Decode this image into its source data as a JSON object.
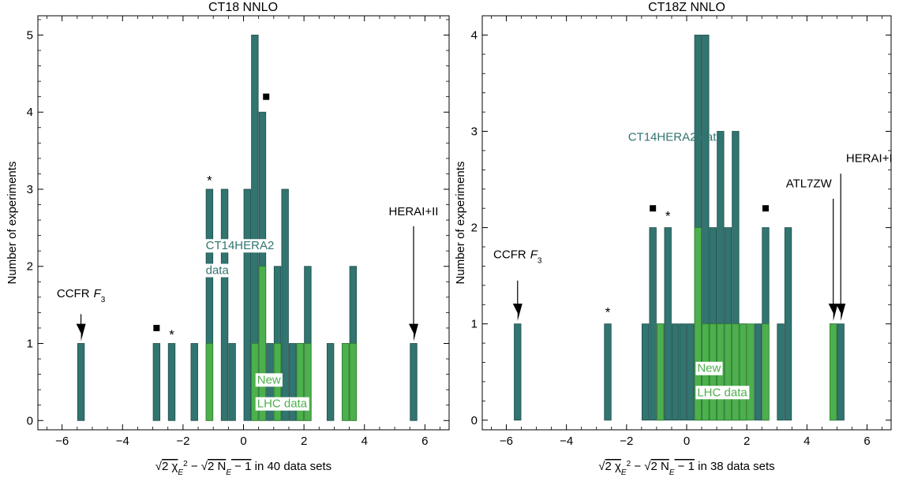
{
  "chart_data": [
    {
      "type": "bar",
      "title": "CT18 NNLO",
      "ylabel": "Number of experiments",
      "xlabel_sqrt1": "2 χ",
      "xlabel_sub1": "E",
      "xlabel_sup1": "2",
      "xlabel_minus": " − ",
      "xlabel_sqrt2": "2 N",
      "xlabel_sub2": "E",
      "xlabel_tail2": " − 1",
      "xlabel_suffix": " in 40 data sets",
      "xlim": [
        -6.8,
        6.8
      ],
      "ylim": [
        -0.12,
        5.25
      ],
      "xticks": [
        -6,
        -4,
        -2,
        0,
        2,
        4,
        6
      ],
      "xtick_labels": [
        "−6",
        "−4",
        "−2",
        "0",
        "2",
        "4",
        "6"
      ],
      "yticks": [
        0,
        1,
        2,
        3,
        4,
        5
      ],
      "bin_width": 0.25,
      "colors": {
        "ct14hera2": "#317470",
        "lhc": "#4cb04c",
        "edge": "#1f4f4c",
        "text_dark": "#000000"
      },
      "series": [
        {
          "name": "CT14HERA2 data",
          "bins": [
            {
              "x": -5.375,
              "y": 1
            },
            {
              "x": -2.875,
              "y": 1
            },
            {
              "x": -2.375,
              "y": 1
            },
            {
              "x": -1.625,
              "y": 1
            },
            {
              "x": -1.125,
              "y": 3
            },
            {
              "x": -0.625,
              "y": 3
            },
            {
              "x": -0.375,
              "y": 1
            },
            {
              "x": 0.125,
              "y": 3
            },
            {
              "x": 0.375,
              "y": 5
            },
            {
              "x": 0.625,
              "y": 4
            },
            {
              "x": 0.875,
              "y": 1
            },
            {
              "x": 1.125,
              "y": 2
            },
            {
              "x": 1.375,
              "y": 3
            },
            {
              "x": 1.625,
              "y": 1
            },
            {
              "x": 1.875,
              "y": 1
            },
            {
              "x": 2.125,
              "y": 2
            },
            {
              "x": 2.875,
              "y": 1
            },
            {
              "x": 3.375,
              "y": 1
            },
            {
              "x": 3.625,
              "y": 2
            },
            {
              "x": 5.625,
              "y": 1
            }
          ]
        },
        {
          "name": "New LHC data",
          "bins": [
            {
              "x": -1.125,
              "y": 1
            },
            {
              "x": 0.375,
              "y": 1
            },
            {
              "x": 0.625,
              "y": 2
            },
            {
              "x": 1.125,
              "y": 1
            },
            {
              "x": 1.875,
              "y": 1
            },
            {
              "x": 2.125,
              "y": 1
            },
            {
              "x": 3.375,
              "y": 1
            },
            {
              "x": 3.625,
              "y": 1
            }
          ]
        }
      ],
      "labels": [
        {
          "text": "CT14HERA2",
          "x": -1.25,
          "y": 2.22,
          "color": "#317470",
          "boxed": true
        },
        {
          "text": "data",
          "x": -1.25,
          "y": 1.9,
          "color": "#317470",
          "boxed": true
        },
        {
          "text": "New",
          "x": 0.45,
          "y": 0.48,
          "color": "#4cb04c",
          "boxed": true
        },
        {
          "text": "LHC data",
          "x": 0.45,
          "y": 0.17,
          "color": "#4cb04c",
          "boxed": true
        }
      ],
      "arrows": [
        {
          "text": "CCFR",
          "subtext": "F",
          "subsub": "3",
          "x": -5.375,
          "label_y": 1.6,
          "tail_y": 1.38,
          "head_y": 1.03
        },
        {
          "text": "HERAI+II",
          "x": 5.625,
          "label_y": 2.66,
          "tail_y": 2.52,
          "head_y": 1.03
        }
      ],
      "markers": [
        {
          "shape": "square",
          "x": -2.875,
          "y": 1.2
        },
        {
          "shape": "star",
          "text": "*",
          "x": -2.375,
          "y": 1.14
        },
        {
          "shape": "star",
          "text": "*",
          "x": -1.125,
          "y": 3.14
        },
        {
          "shape": "square",
          "x": 0.75,
          "y": 4.2
        }
      ]
    },
    {
      "type": "bar",
      "title": "CT18Z NNLO",
      "ylabel": "Number of experiments",
      "xlabel_sqrt1": "2 χ",
      "xlabel_sub1": "E",
      "xlabel_sup1": "2",
      "xlabel_minus": " − ",
      "xlabel_sqrt2": "2 N",
      "xlabel_sub2": "E",
      "xlabel_tail2": " − 1",
      "xlabel_suffix": " in 38 data sets",
      "xlim": [
        -6.8,
        6.8
      ],
      "ylim": [
        -0.1,
        4.2
      ],
      "xticks": [
        -6,
        -4,
        -2,
        0,
        2,
        4,
        6
      ],
      "xtick_labels": [
        "−6",
        "−4",
        "−2",
        "0",
        "2",
        "4",
        "6"
      ],
      "yticks": [
        0,
        1,
        2,
        3,
        4
      ],
      "bin_width": 0.25,
      "colors": {
        "ct14hera2": "#317470",
        "lhc": "#4cb04c",
        "edge": "#1f4f4c",
        "text_dark": "#000000"
      },
      "series": [
        {
          "name": "CT14HERA2 data",
          "bins": [
            {
              "x": -5.625,
              "y": 1
            },
            {
              "x": -2.625,
              "y": 1
            },
            {
              "x": -1.375,
              "y": 1
            },
            {
              "x": -1.125,
              "y": 2
            },
            {
              "x": -0.875,
              "y": 1
            },
            {
              "x": -0.625,
              "y": 2
            },
            {
              "x": -0.375,
              "y": 1
            },
            {
              "x": -0.125,
              "y": 1
            },
            {
              "x": 0.125,
              "y": 1
            },
            {
              "x": 0.375,
              "y": 4
            },
            {
              "x": 0.625,
              "y": 4
            },
            {
              "x": 0.875,
              "y": 2
            },
            {
              "x": 1.125,
              "y": 3
            },
            {
              "x": 1.375,
              "y": 2
            },
            {
              "x": 1.625,
              "y": 3
            },
            {
              "x": 1.875,
              "y": 1
            },
            {
              "x": 2.375,
              "y": 1
            },
            {
              "x": 2.625,
              "y": 2
            },
            {
              "x": 3.125,
              "y": 1
            },
            {
              "x": 3.375,
              "y": 2
            },
            {
              "x": 4.875,
              "y": 1
            },
            {
              "x": 5.125,
              "y": 1
            }
          ]
        },
        {
          "name": "New LHC data",
          "bins": [
            {
              "x": -0.875,
              "y": 1
            },
            {
              "x": 0.375,
              "y": 2
            },
            {
              "x": 0.625,
              "y": 1
            },
            {
              "x": 0.875,
              "y": 1
            },
            {
              "x": 1.125,
              "y": 1
            },
            {
              "x": 1.375,
              "y": 1
            },
            {
              "x": 1.625,
              "y": 1
            },
            {
              "x": 1.875,
              "y": 1
            },
            {
              "x": 2.125,
              "y": 1
            },
            {
              "x": 2.625,
              "y": 1
            },
            {
              "x": 4.875,
              "y": 1
            }
          ]
        }
      ],
      "labels": [
        {
          "text": "CT14HERA2 data",
          "x": -1.95,
          "y": 2.9,
          "color": "#317470",
          "boxed": false
        },
        {
          "text": "New",
          "x": 0.35,
          "y": 0.5,
          "color": "#4cb04c",
          "boxed": true
        },
        {
          "text": "LHC data",
          "x": 0.35,
          "y": 0.25,
          "color": "#4cb04c",
          "boxed": true
        }
      ],
      "arrows": [
        {
          "text": "CCFR",
          "subtext": "F",
          "subsub": "3",
          "x": -5.625,
          "label_y": 1.68,
          "tail_y": 1.45,
          "head_y": 1.03
        },
        {
          "text": "ATL7ZW",
          "x": 4.875,
          "label_y": 2.42,
          "tail_y": 2.3,
          "head_y": 1.03,
          "text_x": 3.3
        },
        {
          "text": "HERAI+I",
          "x": 5.125,
          "label_y": 2.68,
          "tail_y": 2.56,
          "head_y": 1.03,
          "text_x": 5.3
        }
      ],
      "markers": [
        {
          "shape": "square",
          "x": -1.125,
          "y": 2.2
        },
        {
          "shape": "star",
          "text": "*",
          "x": -0.625,
          "y": 2.14
        },
        {
          "shape": "star",
          "text": "*",
          "x": -2.625,
          "y": 1.14
        },
        {
          "shape": "square",
          "x": 2.625,
          "y": 2.2
        }
      ]
    }
  ]
}
